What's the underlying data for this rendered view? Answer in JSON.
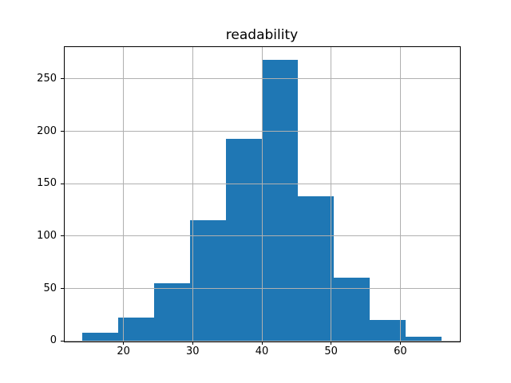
{
  "chart_data": {
    "type": "bar",
    "subtype": "histogram",
    "title": "readability",
    "xlabel": "",
    "ylabel": "",
    "bin_edges": [
      14.0,
      19.2,
      24.4,
      29.6,
      34.8,
      40.0,
      45.2,
      50.4,
      55.6,
      60.8,
      66.0
    ],
    "counts": [
      8,
      22,
      55,
      115,
      193,
      268,
      138,
      60,
      20,
      4
    ],
    "xlim": [
      11.4,
      68.6
    ],
    "ylim": [
      0,
      281.4
    ],
    "x_ticks": [
      20,
      30,
      40,
      50,
      60
    ],
    "y_ticks": [
      0,
      50,
      100,
      150,
      200,
      250
    ],
    "grid": true,
    "grid_over_bars": true,
    "legend": false,
    "bar_color": "#1f77b4",
    "grid_color": "#b0b0b0",
    "background_color": "#ffffff",
    "text_color": "#000000"
  }
}
